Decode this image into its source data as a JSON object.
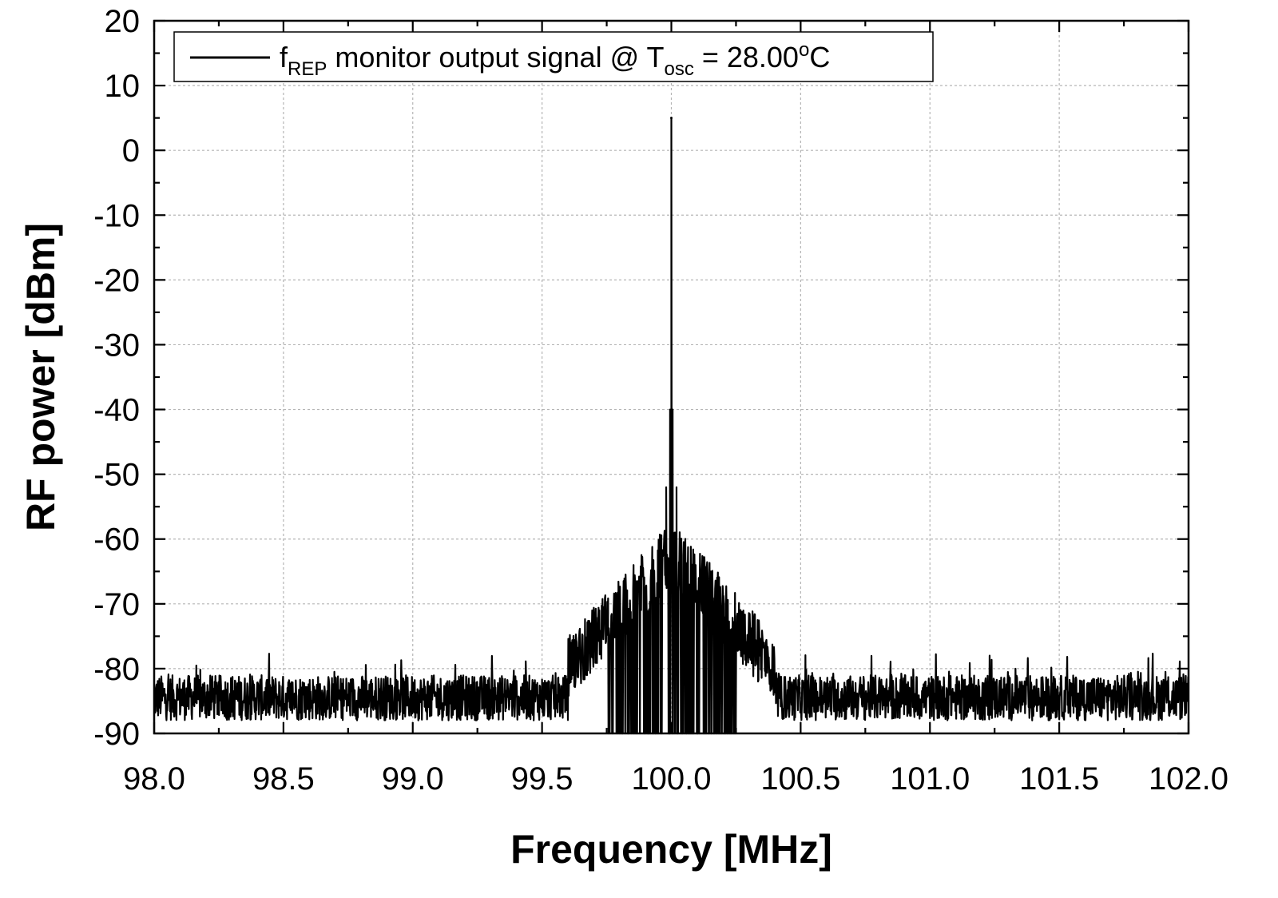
{
  "chart_data": {
    "type": "line",
    "title": "",
    "xlabel": "Frequency [MHz]",
    "ylabel": "RF power [dBm]",
    "xlim": [
      98.0,
      102.0
    ],
    "ylim": [
      -90,
      20
    ],
    "x_ticks": [
      98.0,
      98.5,
      99.0,
      99.5,
      100.0,
      100.5,
      101.0,
      101.5,
      102.0
    ],
    "x_tick_labels": [
      "98.0",
      "98.5",
      "99.0",
      "99.5",
      "100.0",
      "100.5",
      "101.0",
      "101.5",
      "102.0"
    ],
    "y_ticks": [
      20,
      10,
      0,
      -10,
      -20,
      -30,
      -40,
      -50,
      -60,
      -70,
      -80,
      -90
    ],
    "y_tick_labels": [
      "20",
      "10",
      "0",
      "-10",
      "-20",
      "-30",
      "-40",
      "-50",
      "-60",
      "-70",
      "-80",
      "-90"
    ],
    "grid": true,
    "legend_position": "top-left",
    "line_color": "#000000",
    "series": [
      {
        "legend_parts": {
          "f": "f",
          "f_sub": "REP",
          "mid": " monitor output signal @ T",
          "t_sub": "osc",
          "eq": " = 28.00",
          "deg": "o",
          "unit": "C"
        },
        "peak": {
          "x": 100.0,
          "y": 5
        },
        "noise_floor_range": [
          -90,
          -78
        ],
        "shoulder_peaks": [
          {
            "x": 99.98,
            "y": -52
          },
          {
            "x": 100.02,
            "y": -52
          },
          {
            "x": 99.95,
            "y": -63
          },
          {
            "x": 100.05,
            "y": -63
          },
          {
            "x": 99.9,
            "y": -68
          },
          {
            "x": 100.1,
            "y": -68
          },
          {
            "x": 99.8,
            "y": -76
          },
          {
            "x": 100.2,
            "y": -76
          }
        ]
      }
    ]
  }
}
